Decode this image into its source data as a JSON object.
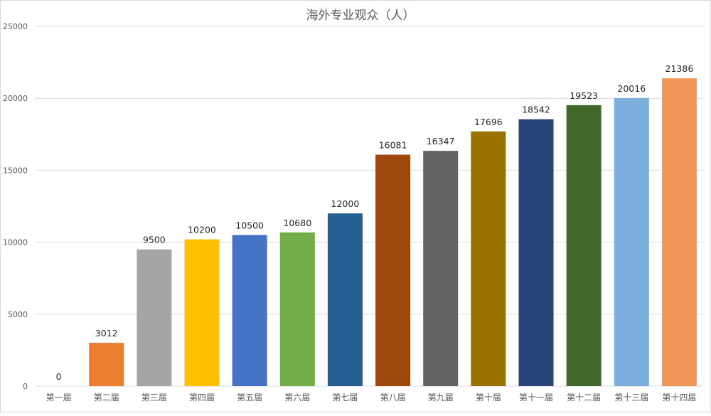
{
  "chart_data": {
    "type": "bar",
    "title": "海外专业观众（人）",
    "xlabel": "",
    "ylabel": "",
    "ylim": [
      0,
      25000
    ],
    "yticks": [
      0,
      5000,
      10000,
      15000,
      20000,
      25000
    ],
    "grid": true,
    "legend": "none",
    "categories": [
      "第一届",
      "第二届",
      "第三届",
      "第四届",
      "第五届",
      "第六届",
      "第七届",
      "第八届",
      "第九届",
      "第十届",
      "第十一届",
      "第十二届",
      "第十三届",
      "第十四届"
    ],
    "values": [
      0,
      3012,
      9500,
      10200,
      10500,
      10680,
      12000,
      16081,
      16347,
      17696,
      18542,
      19523,
      20016,
      21386
    ],
    "colors": [
      "#4472c4",
      "#ed7d31",
      "#a5a5a5",
      "#ffc000",
      "#4472c4",
      "#70ad47",
      "#255e91",
      "#9e480e",
      "#636363",
      "#997300",
      "#264478",
      "#43682b",
      "#7cafdd",
      "#f1975a"
    ]
  }
}
